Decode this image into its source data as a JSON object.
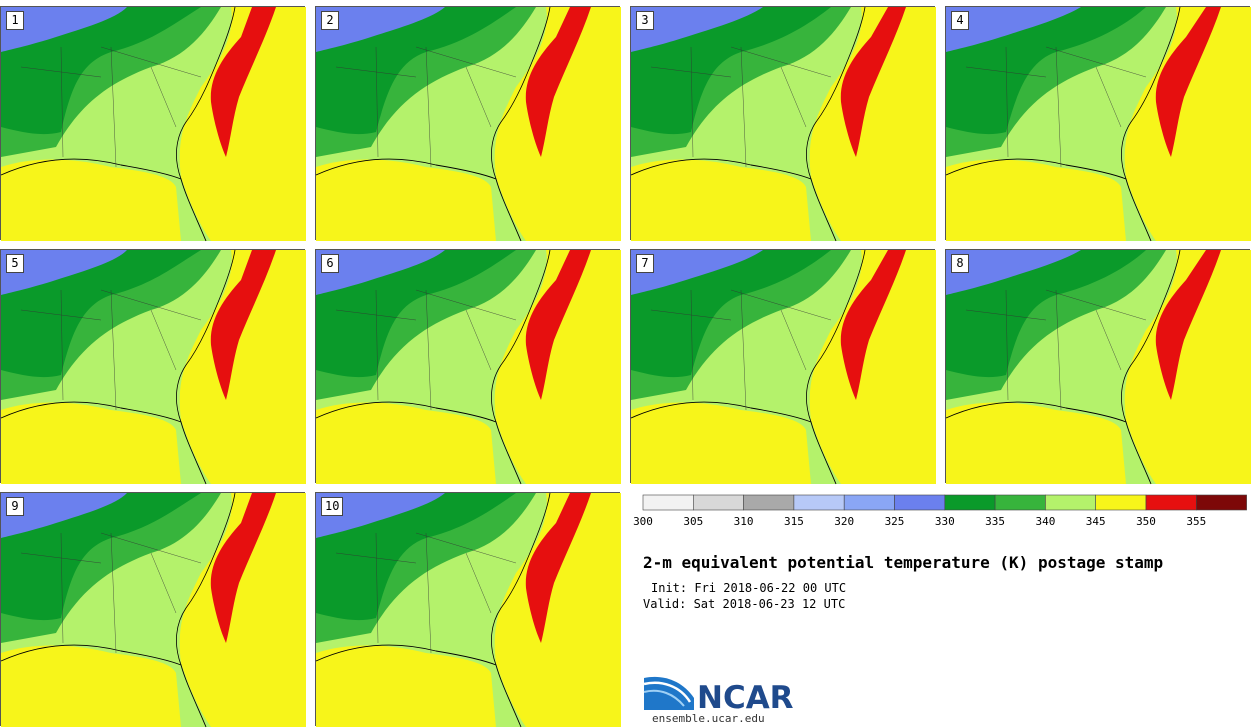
{
  "panels": [
    {
      "label": "1"
    },
    {
      "label": "2"
    },
    {
      "label": "3"
    },
    {
      "label": "4"
    },
    {
      "label": "5"
    },
    {
      "label": "6"
    },
    {
      "label": "7"
    },
    {
      "label": "8"
    },
    {
      "label": "9"
    },
    {
      "label": "10"
    }
  ],
  "colorbar": {
    "ticks": [
      "300",
      "305",
      "310",
      "315",
      "320",
      "325",
      "330",
      "335",
      "340",
      "345",
      "350",
      "355"
    ],
    "colors": [
      "#f2f2f2",
      "#d8d8d8",
      "#a9a9a9",
      "#b7c9f7",
      "#8aa6f5",
      "#6b80ee",
      "#0a9a2a",
      "#37b43c",
      "#b4f26b",
      "#f7f51a",
      "#e60f0f",
      "#7d0808"
    ]
  },
  "title": "2-m equivalent potential temperature (K) postage stamp",
  "init": "Init: Fri 2018-06-22 00 UTC",
  "valid": "Valid: Sat 2018-06-23 12 UTC",
  "logo": {
    "text": "NCAR",
    "site": "ensemble.ucar.edu"
  }
}
